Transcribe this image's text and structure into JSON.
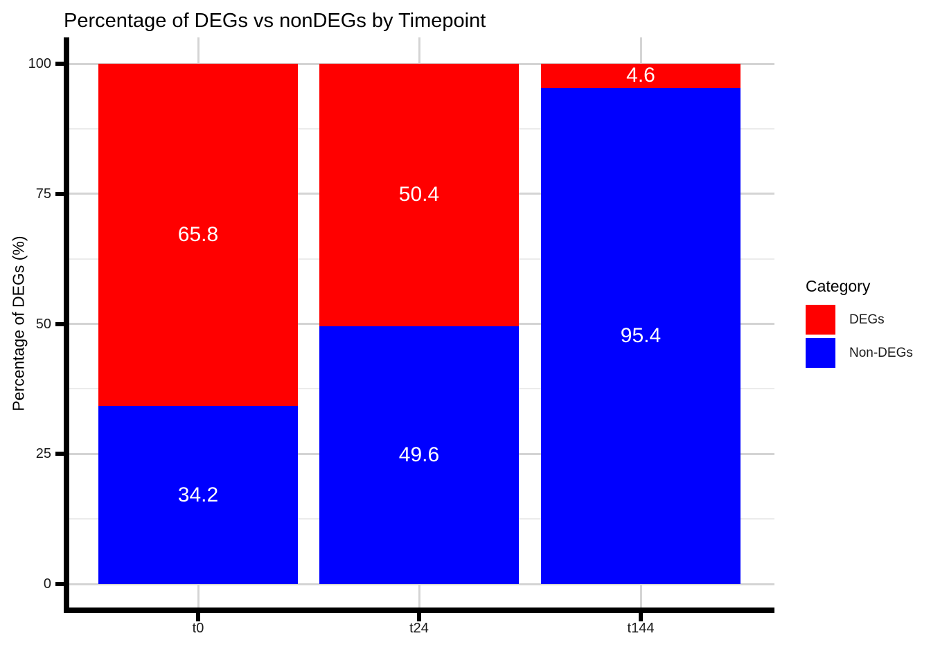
{
  "chart_data": {
    "type": "bar",
    "stacked": true,
    "title": "Percentage of DEGs vs nonDEGs by Timepoint",
    "xlabel": "",
    "ylabel": "Percentage of DEGs (%)",
    "categories": [
      "t0",
      "t24",
      "t144"
    ],
    "series": [
      {
        "name": "DEGs",
        "color": "#FF0000",
        "values": [
          65.8,
          50.4,
          4.6
        ]
      },
      {
        "name": "Non-DEGs",
        "color": "#0000FF",
        "values": [
          34.2,
          49.6,
          95.4
        ]
      }
    ],
    "stack_bottom_to_top": [
      "Non-DEGs",
      "DEGs"
    ],
    "bar_value_labels": [
      {
        "category": "t0",
        "DEGs": 65.8,
        "Non-DEGs": 34.2
      },
      {
        "category": "t24",
        "DEGs": 50.4,
        "Non-DEGs": 49.6
      },
      {
        "category": "t144",
        "DEGs": 4.6,
        "Non-DEGs": 95.4
      }
    ],
    "ylim": [
      0,
      100
    ],
    "y_ticks": [
      0,
      25,
      50,
      75,
      100
    ],
    "y_minor_gridlines": [
      12.5,
      37.5,
      62.5,
      87.5
    ],
    "legend": {
      "title": "Category",
      "position": "right",
      "items": [
        "DEGs",
        "Non-DEGs"
      ]
    },
    "colors": {
      "bar_label_text": "#FFFFFF",
      "grid_major": "#d4d4d4",
      "grid_minor": "#ebebeb",
      "axis": "#000000",
      "tick_text": "#1a1a1a",
      "background": "#FFFFFF"
    }
  }
}
